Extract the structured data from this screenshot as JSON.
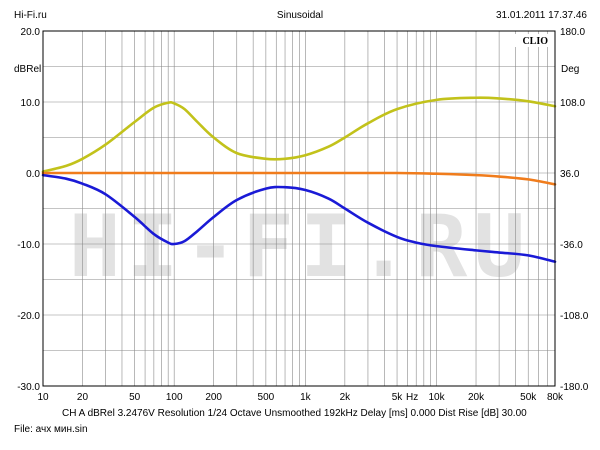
{
  "header": {
    "left": "Hi-Fi.ru",
    "center": "Sinusoidal",
    "right": "31.01.2011 17.37.46"
  },
  "badge": "CLIO",
  "watermark": "HI-FI.RU",
  "footer": {
    "line1": "CH A   dBRel 3.2476V   Resolution 1/24 Octave   Unsmoothed   192kHz   Delay [ms] 0.000   Dist Rise [dB] 30.00",
    "line2": "File: ачх мин.sin"
  },
  "colors": {
    "background": "#ffffff",
    "grid": "#8a8a8a",
    "phase_curve": "#c2c21b",
    "response_curve_flat": "#f07c1c",
    "response_curve_eq": "#1a1ad6"
  },
  "chart_data": {
    "type": "line",
    "x_scale": "log",
    "grid": true,
    "xlim": [
      10,
      80000
    ],
    "ylim": [
      -30,
      20
    ],
    "y2lim": [
      -180,
      180
    ],
    "ylabel": "dBRel",
    "y2label": "Deg",
    "xunit": "Hz",
    "x_ticks": [
      {
        "v": 10,
        "label": "10"
      },
      {
        "v": 20,
        "label": "20"
      },
      {
        "v": 50,
        "label": "50"
      },
      {
        "v": 100,
        "label": "100"
      },
      {
        "v": 200,
        "label": "200"
      },
      {
        "v": 500,
        "label": "500"
      },
      {
        "v": 1000,
        "label": "1k"
      },
      {
        "v": 2000,
        "label": "2k"
      },
      {
        "v": 5000,
        "label": "5k"
      },
      {
        "v": 10000,
        "label": "10k"
      },
      {
        "v": 20000,
        "label": "20k"
      },
      {
        "v": 50000,
        "label": "50k"
      },
      {
        "v": 80000,
        "label": "80k"
      }
    ],
    "y_ticks": [
      "20.0",
      "10.0",
      "0.0",
      "-10.0",
      "-20.0",
      "-30.0"
    ],
    "y2_ticks": [
      "180.0",
      "108.0",
      "36.0",
      "-36.0",
      "-108.0",
      "-180.0"
    ],
    "series": [
      {
        "color": "#c2c21b",
        "x": [
          10,
          15,
          20,
          30,
          50,
          70,
          90,
          100,
          120,
          150,
          200,
          300,
          500,
          700,
          1000,
          1500,
          2000,
          3000,
          5000,
          10000,
          20000,
          30000,
          50000,
          80000
        ],
        "y": [
          0.2,
          1.0,
          2.0,
          4.0,
          7.2,
          9.2,
          9.9,
          9.8,
          9.0,
          7.2,
          5.0,
          2.8,
          2.0,
          2.0,
          2.5,
          3.7,
          5.0,
          7.0,
          9.0,
          10.3,
          10.6,
          10.5,
          10.1,
          9.4
        ]
      },
      {
        "color": "#f07c1c",
        "x": [
          10,
          100,
          1000,
          5000,
          10000,
          20000,
          30000,
          50000,
          80000
        ],
        "y": [
          0.0,
          0.0,
          0.0,
          0.0,
          -0.1,
          -0.3,
          -0.5,
          -0.9,
          -1.6
        ]
      },
      {
        "color": "#1a1ad6",
        "x": [
          10,
          15,
          20,
          30,
          50,
          70,
          90,
          100,
          120,
          150,
          200,
          300,
          500,
          700,
          1000,
          1500,
          2000,
          3000,
          5000,
          7000,
          10000,
          20000,
          30000,
          50000,
          80000
        ],
        "y": [
          -0.3,
          -0.8,
          -1.5,
          -3.0,
          -6.2,
          -8.6,
          -9.8,
          -10.0,
          -9.6,
          -8.2,
          -6.2,
          -3.8,
          -2.2,
          -2.0,
          -2.4,
          -3.6,
          -5.0,
          -7.0,
          -9.0,
          -9.8,
          -10.3,
          -10.9,
          -11.2,
          -11.6,
          -12.5
        ]
      }
    ]
  }
}
